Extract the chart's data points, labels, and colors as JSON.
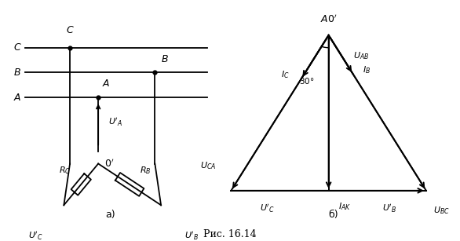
{
  "fig_width": 5.86,
  "fig_height": 3.07,
  "bg_color": "#ffffff",
  "caption": "Рис. 16.14",
  "label_a": "а)",
  "label_b": "б)"
}
